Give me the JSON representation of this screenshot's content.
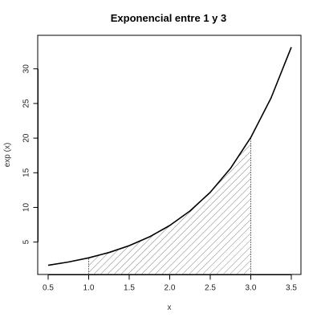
{
  "chart_data": {
    "type": "line",
    "title": "Exponencial entre 1 y 3",
    "xlabel": "x",
    "ylabel": "exp (x)",
    "xlim": [
      0.5,
      3.5
    ],
    "ylim": [
      1.6,
      33.1
    ],
    "xticks": [
      0.5,
      1.0,
      1.5,
      2.0,
      2.5,
      3.0,
      3.5
    ],
    "xtick_labels": [
      "0.5",
      "1.0",
      "1.5",
      "2.0",
      "2.5",
      "3.0",
      "3.5"
    ],
    "yticks": [
      5,
      10,
      15,
      20,
      25,
      30
    ],
    "ytick_labels": [
      "5",
      "10",
      "15",
      "20",
      "25",
      "30"
    ],
    "series": [
      {
        "function": "exp(x)",
        "x": [
          0.5,
          0.75,
          1.0,
          1.25,
          1.5,
          1.75,
          2.0,
          2.25,
          2.5,
          2.75,
          3.0,
          3.25,
          3.5
        ],
        "y": [
          1.65,
          2.12,
          2.72,
          3.49,
          4.48,
          5.75,
          7.39,
          9.49,
          12.18,
          15.64,
          20.09,
          25.79,
          33.12
        ],
        "color": "#000000"
      }
    ],
    "shaded_region": {
      "x_from": 1.0,
      "x_to": 3.0,
      "pattern": "diagonal hatching",
      "color": "#555555"
    },
    "grid": false,
    "frame": "box"
  }
}
